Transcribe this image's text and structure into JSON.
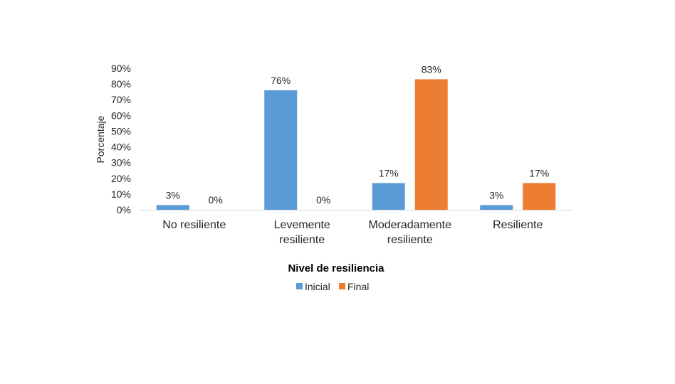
{
  "chart_data": {
    "type": "bar",
    "categories": [
      [
        "No resiliente"
      ],
      [
        "Levemente",
        "resiliente"
      ],
      [
        "Moderadamente",
        "resiliente"
      ],
      [
        "Resiliente"
      ]
    ],
    "series": [
      {
        "name": "Inicial",
        "color": "#5B9BD5",
        "values": [
          3,
          76,
          17,
          3
        ],
        "labels": [
          "3%",
          "76%",
          "17%",
          "3%"
        ]
      },
      {
        "name": "Final",
        "color": "#ED7D31",
        "values": [
          0,
          0,
          83,
          17
        ],
        "labels": [
          "0%",
          "0%",
          "83%",
          "17%"
        ]
      }
    ],
    "xlabel": "Nivel de resiliencia",
    "ylabel": "Porcentaje",
    "ylim": [
      0,
      90
    ],
    "ytick_step": 10,
    "ytick_labels": [
      "0%",
      "10%",
      "20%",
      "30%",
      "40%",
      "50%",
      "60%",
      "70%",
      "80%",
      "90%"
    ],
    "grid": false,
    "legend_position": "bottom"
  }
}
